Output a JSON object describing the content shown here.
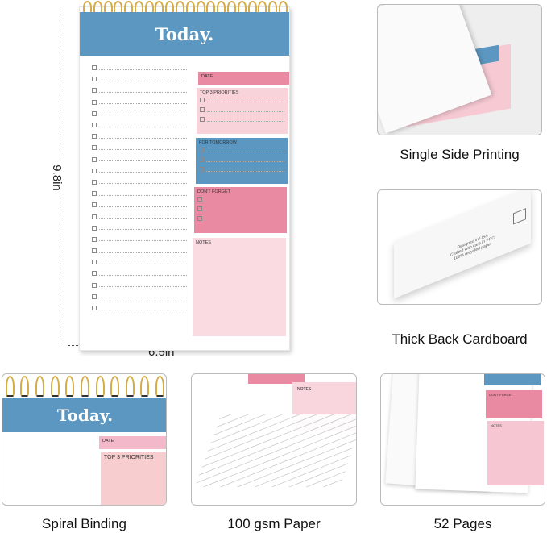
{
  "main_pad": {
    "title": "Today.",
    "date_label": "DATE",
    "priorities_label": "TOP 3 PRIORITIES",
    "tomorrow_label": "FOR TOMORROW",
    "dont_forget_label": "DON'T FORGET",
    "notes_label": "NOTES"
  },
  "dimensions": {
    "height": "9.8in",
    "width": "6.5in"
  },
  "features": [
    {
      "label": "Single Side Printing"
    },
    {
      "label": "Thick Back Cardboard",
      "print_text": [
        "Designed in USA",
        "Crafted with care in PRC",
        "100% recycled paper"
      ]
    },
    {
      "label": "Spiral Binding"
    },
    {
      "label": "100 gsm Paper"
    },
    {
      "label": "52 Pages"
    }
  ],
  "colors": {
    "blue": "#5b97c0",
    "pink": "#e98aa2",
    "light_pink": "#f8d3da",
    "gold": "#d4ad48"
  }
}
